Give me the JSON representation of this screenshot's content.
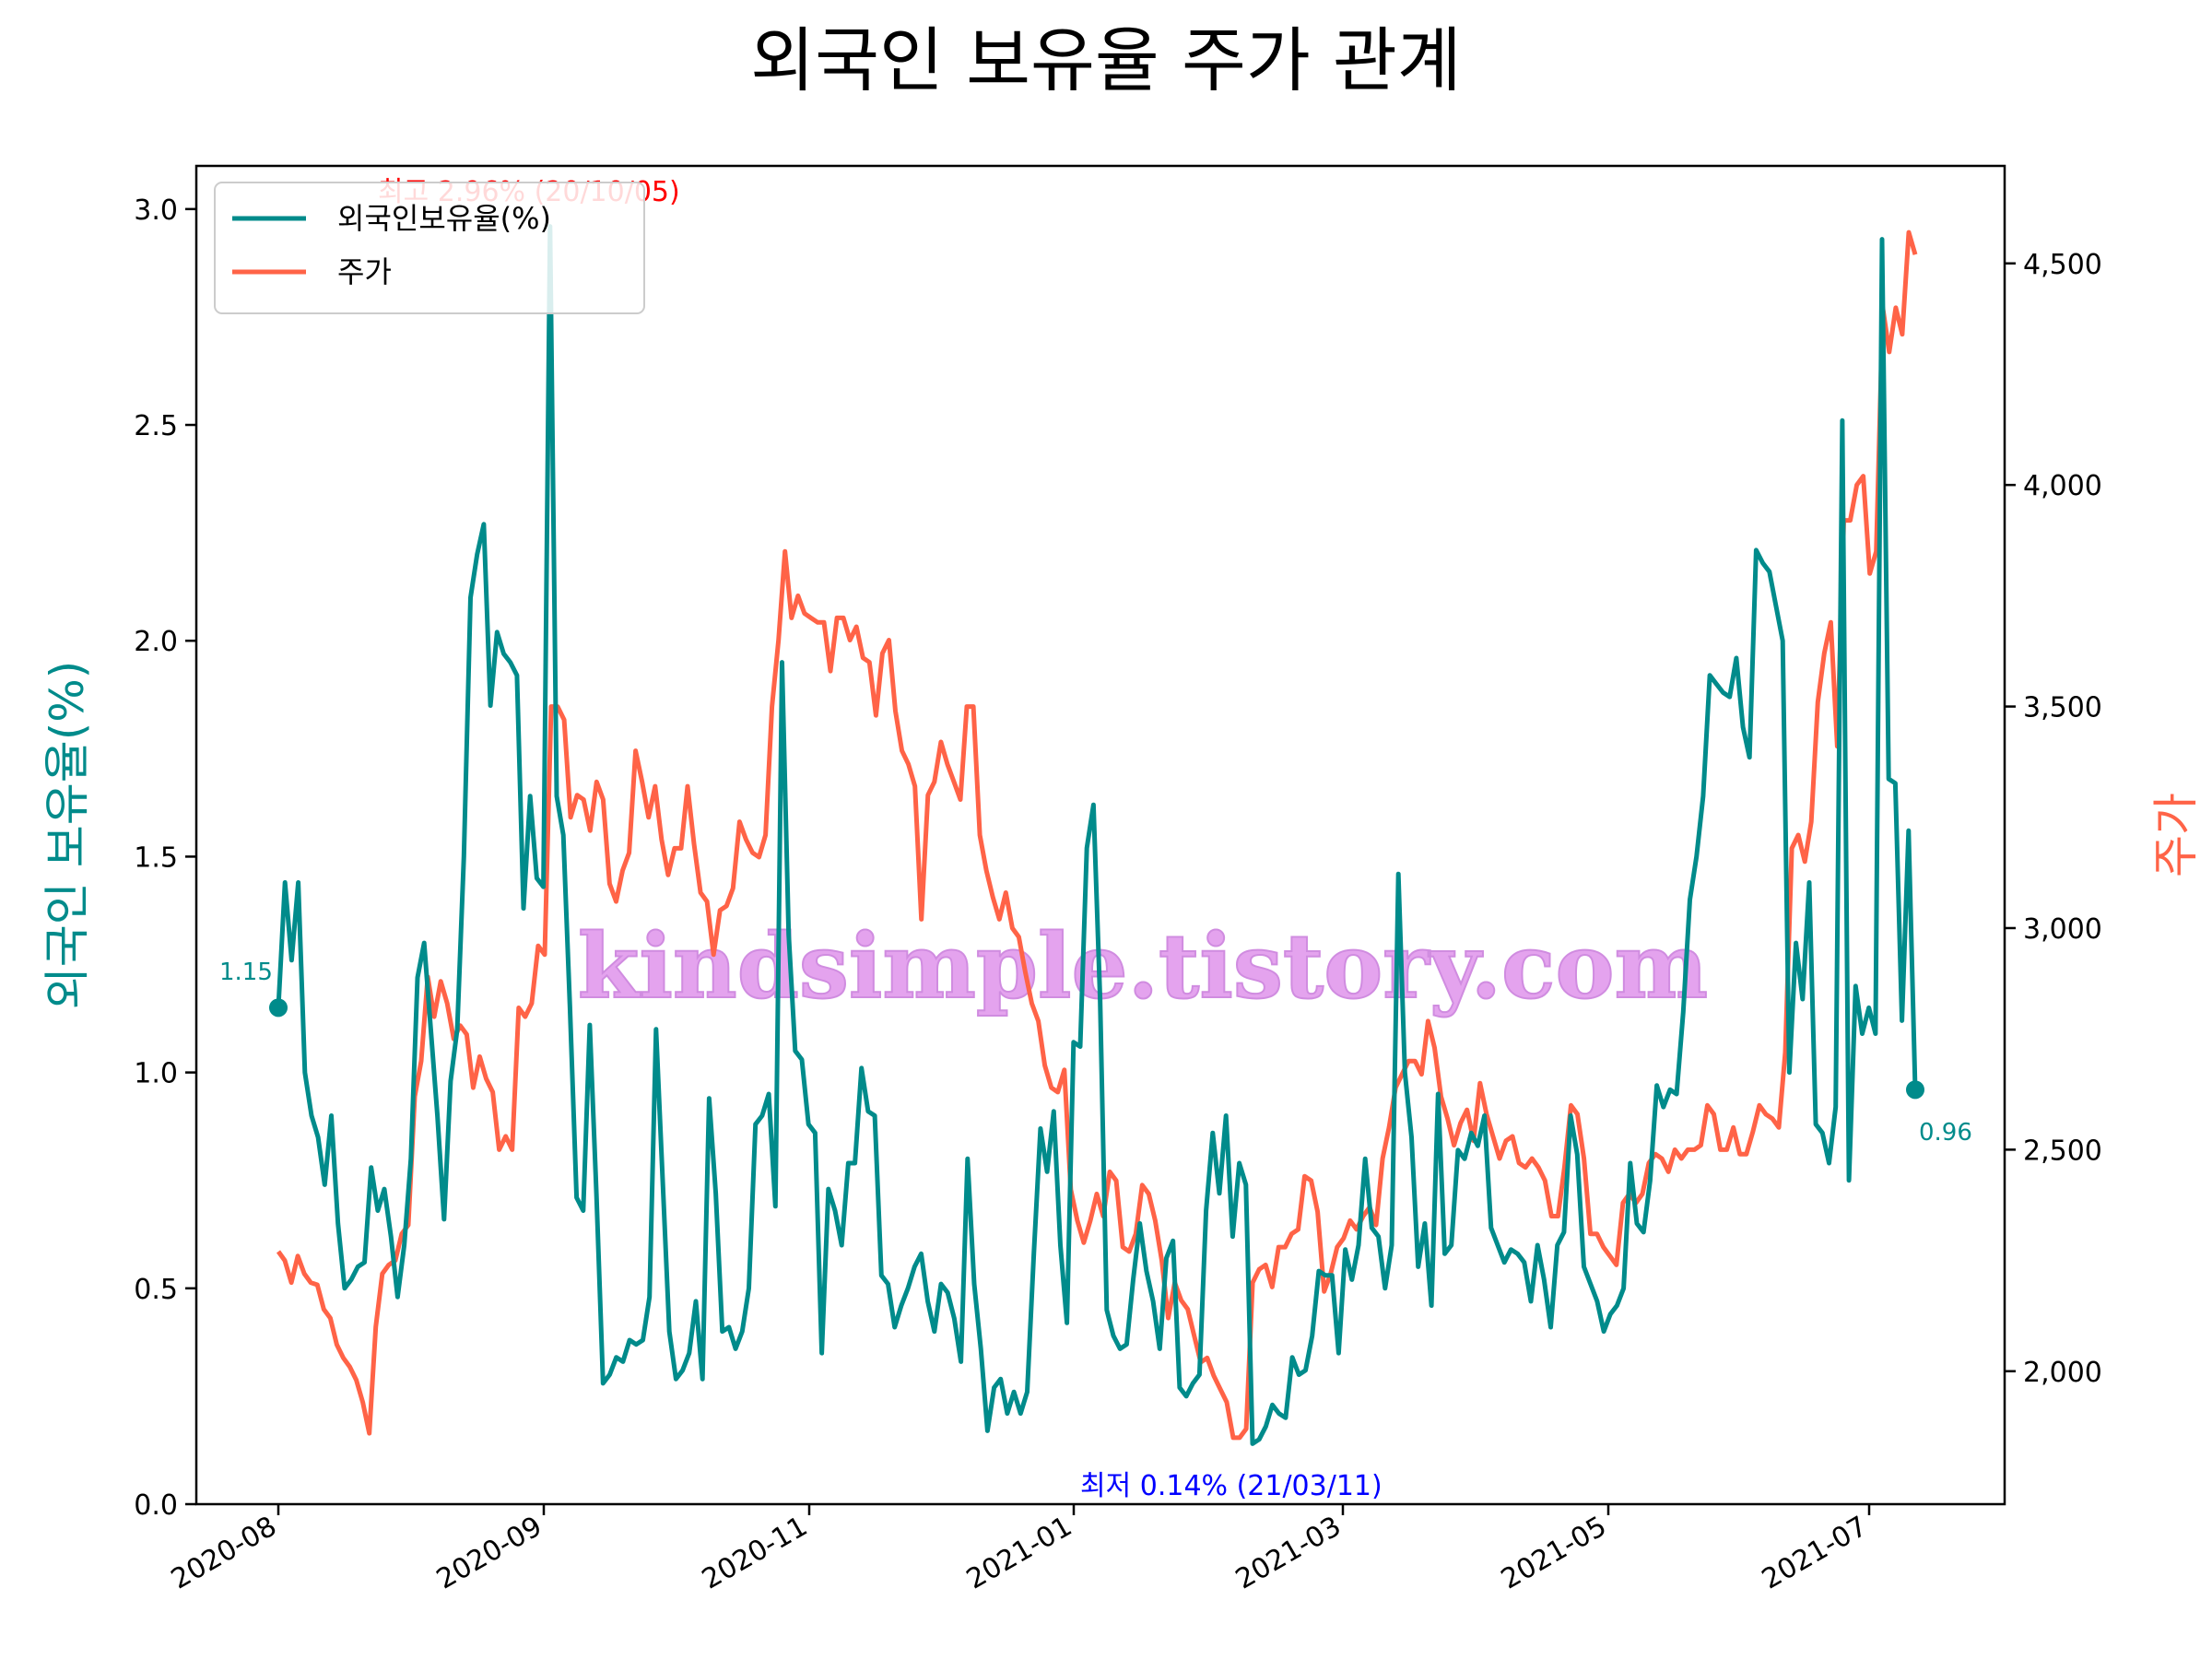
{
  "chart_data": {
    "type": "line",
    "title": "외국인 보유율 주가 관계",
    "ylabel_left": "외국인 보유율(%)",
    "ylabel_right": "주가",
    "ylim_left": [
      0,
      3.1
    ],
    "ylim_right": [
      1700,
      4720
    ],
    "yticks_left": [
      "0.0",
      "0.5",
      "1.0",
      "1.5",
      "2.0",
      "2.5",
      "3.0"
    ],
    "yticks_right": [
      "2,000",
      "2,500",
      "3,000",
      "3,500",
      "4,000",
      "4,500"
    ],
    "xticks": [
      "2020-08",
      "2020-09",
      "2020-11",
      "2021-01",
      "2021-03",
      "2021-05",
      "2021-07"
    ],
    "legend": {
      "position": "upper-left",
      "entries": [
        "외국인보유율(%)",
        "주가"
      ]
    },
    "annotations": {
      "max": "최고 2.96% (20/10/05)",
      "min": "최저 0.14% (21/03/11)",
      "start": "1.15",
      "end": "0.96"
    },
    "watermark": "kindsimple.tistory.com",
    "colors": {
      "foreign": "#008b8b",
      "price": "#ff6347",
      "max": "#ff0000",
      "min": "#0000ff"
    },
    "series": [
      {
        "name": "외국인보유율(%)",
        "values": [
          1.15,
          1.44,
          1.26,
          1.44,
          1.0,
          0.9,
          0.85,
          0.74,
          0.9,
          0.65,
          0.5,
          0.52,
          0.55,
          0.56,
          0.78,
          0.68,
          0.73,
          0.62,
          0.48,
          0.6,
          0.8,
          1.22,
          1.3,
          1.1,
          0.9,
          0.66,
          0.98,
          1.1,
          1.5,
          2.1,
          2.2,
          2.27,
          1.85,
          2.02,
          1.97,
          1.95,
          1.92,
          1.38,
          1.64,
          1.45,
          1.43,
          2.96,
          1.64,
          1.55,
          1.15,
          0.71,
          0.68,
          1.11,
          0.72,
          0.28,
          0.3,
          0.34,
          0.33,
          0.38,
          0.37,
          0.38,
          0.48,
          1.1,
          0.75,
          0.4,
          0.29,
          0.31,
          0.35,
          0.47,
          0.29,
          0.94,
          0.72,
          0.4,
          0.41,
          0.36,
          0.4,
          0.5,
          0.88,
          0.9,
          0.95,
          0.69,
          1.95,
          1.32,
          1.05,
          1.03,
          0.88,
          0.86,
          0.35,
          0.73,
          0.68,
          0.6,
          0.79,
          0.79,
          1.01,
          0.91,
          0.9,
          0.53,
          0.51,
          0.41,
          0.46,
          0.5,
          0.55,
          0.58,
          0.47,
          0.4,
          0.51,
          0.49,
          0.43,
          0.33,
          0.8,
          0.51,
          0.36,
          0.17,
          0.27,
          0.29,
          0.21,
          0.26,
          0.21,
          0.26,
          0.58,
          0.87,
          0.77,
          0.91,
          0.6,
          0.42,
          1.07,
          1.06,
          1.52,
          1.62,
          1.17,
          0.45,
          0.39,
          0.36,
          0.37,
          0.52,
          0.65,
          0.54,
          0.47,
          0.36,
          0.57,
          0.61,
          0.27,
          0.25,
          0.28,
          0.3,
          0.68,
          0.86,
          0.72,
          0.9,
          0.62,
          0.79,
          0.74,
          0.14,
          0.15,
          0.18,
          0.23,
          0.21,
          0.2,
          0.34,
          0.3,
          0.31,
          0.39,
          0.54,
          0.53,
          0.53,
          0.35,
          0.59,
          0.52,
          0.6,
          0.8,
          0.64,
          0.62,
          0.5,
          0.6,
          1.46,
          1.0,
          0.85,
          0.55,
          0.65,
          0.46,
          0.95,
          0.58,
          0.6,
          0.82,
          0.8,
          0.86,
          0.83,
          0.9,
          0.64,
          0.6,
          0.56,
          0.59,
          0.58,
          0.56,
          0.47,
          0.6,
          0.52,
          0.41,
          0.6,
          0.63,
          0.9,
          0.81,
          0.55,
          0.51,
          0.47,
          0.4,
          0.44,
          0.46,
          0.5,
          0.79,
          0.65,
          0.63,
          0.75,
          0.97,
          0.92,
          0.96,
          0.95,
          1.14,
          1.4,
          1.5,
          1.64,
          1.92,
          1.9,
          1.88,
          1.87,
          1.96,
          1.8,
          1.73,
          2.21,
          2.18,
          2.16,
          2.08,
          2.0,
          1.0,
          1.3,
          1.17,
          1.44,
          0.88,
          0.86,
          0.79,
          0.92,
          2.51,
          0.75,
          1.2,
          1.09,
          1.15,
          1.09,
          2.93,
          1.68,
          1.67,
          1.12,
          1.56,
          0.96
        ]
      },
      {
        "name": "주가",
        "values": [
          2270,
          2250,
          2200,
          2260,
          2220,
          2200,
          2195,
          2140,
          2120,
          2060,
          2030,
          2010,
          1980,
          1930,
          1860,
          2100,
          2220,
          2240,
          2250,
          2310,
          2330,
          2620,
          2700,
          2890,
          2800,
          2880,
          2830,
          2750,
          2780,
          2760,
          2640,
          2710,
          2660,
          2630,
          2500,
          2530,
          2500,
          2820,
          2800,
          2830,
          2960,
          2940,
          3500,
          3500,
          3470,
          3250,
          3300,
          3290,
          3220,
          3330,
          3290,
          3100,
          3060,
          3130,
          3170,
          3400,
          3330,
          3250,
          3320,
          3200,
          3120,
          3180,
          3180,
          3320,
          3190,
          3080,
          3060,
          2940,
          3040,
          3050,
          3090,
          3240,
          3200,
          3170,
          3160,
          3210,
          3500,
          3650,
          3850,
          3700,
          3750,
          3710,
          3700,
          3690,
          3690,
          3580,
          3700,
          3700,
          3650,
          3680,
          3610,
          3600,
          3480,
          3620,
          3650,
          3490,
          3400,
          3370,
          3320,
          3020,
          3300,
          3330,
          3420,
          3370,
          3330,
          3290,
          3500,
          3500,
          3210,
          3130,
          3070,
          3020,
          3080,
          3000,
          2980,
          2900,
          2830,
          2790,
          2690,
          2640,
          2630,
          2680,
          2410,
          2340,
          2290,
          2340,
          2400,
          2350,
          2450,
          2430,
          2280,
          2270,
          2310,
          2420,
          2400,
          2340,
          2250,
          2120,
          2200,
          2160,
          2140,
          2080,
          2020,
          2030,
          1990,
          1960,
          1930,
          1850,
          1850,
          1870,
          2200,
          2230,
          2240,
          2190,
          2280,
          2280,
          2310,
          2320,
          2440,
          2430,
          2360,
          2180,
          2220,
          2280,
          2300,
          2340,
          2320,
          2350,
          2370,
          2330,
          2480,
          2550,
          2640,
          2670,
          2700,
          2700,
          2670,
          2790,
          2730,
          2620,
          2570,
          2510,
          2560,
          2590,
          2520,
          2650,
          2580,
          2530,
          2480,
          2520,
          2530,
          2470,
          2460,
          2480,
          2460,
          2430,
          2350,
          2350,
          2460,
          2600,
          2580,
          2480,
          2310,
          2310,
          2280,
          2260,
          2240,
          2380,
          2400,
          2380,
          2400,
          2470,
          2490,
          2480,
          2450,
          2500,
          2480,
          2500,
          2500,
          2510,
          2600,
          2580,
          2500,
          2500,
          2550,
          2490,
          2490,
          2540,
          2600,
          2580,
          2570,
          2550,
          2720,
          3180,
          3210,
          3150,
          3240,
          3510,
          3620,
          3690,
          3410,
          3920,
          3920,
          4000,
          4020,
          3800,
          3850,
          4400,
          4300,
          4400,
          4340,
          4570,
          4520
        ]
      }
    ]
  }
}
